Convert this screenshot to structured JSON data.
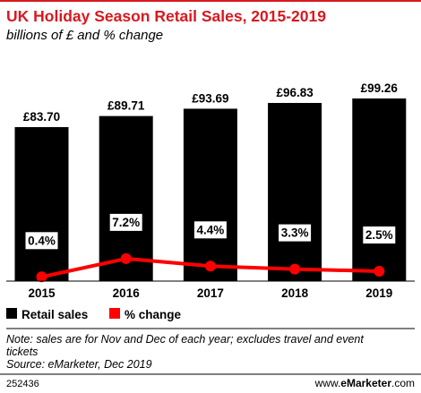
{
  "colors": {
    "title": "#d71920",
    "bar": "#000000",
    "line": "#ff0000",
    "pct_label_bg": "#ffffff",
    "brand_accent": "#d71920"
  },
  "header": {
    "title": "UK Holiday Season Retail Sales, 2015-2019",
    "subtitle": "billions of £ and % change"
  },
  "chart_data": {
    "type": "bar",
    "categories": [
      "2015",
      "2016",
      "2017",
      "2018",
      "2019"
    ],
    "series": [
      {
        "name": "Retail sales",
        "type": "bar",
        "values": [
          83.7,
          89.71,
          93.69,
          96.83,
          99.26
        ],
        "labels": [
          "£83.70",
          "£89.71",
          "£93.69",
          "£96.83",
          "£99.26"
        ]
      },
      {
        "name": "% change",
        "type": "line",
        "values": [
          0.4,
          7.2,
          4.4,
          3.3,
          2.5
        ],
        "labels": [
          "0.4%",
          "7.2%",
          "4.4%",
          "3.3%",
          "2.5%"
        ]
      }
    ],
    "grid": false,
    "legend_position": "bottom-left"
  },
  "legend": {
    "items": [
      {
        "label": "Retail sales"
      },
      {
        "label": "% change"
      }
    ]
  },
  "footer": {
    "note": "Note: sales are for Nov and Dec of each year; excludes travel and event",
    "note_cont": "tickets",
    "source": "Source: eMarketer, Dec 2019",
    "chart_id": "252436",
    "brand_prefix": "www.",
    "brand_name": "eMarketer",
    "brand_suffix": ".com"
  }
}
